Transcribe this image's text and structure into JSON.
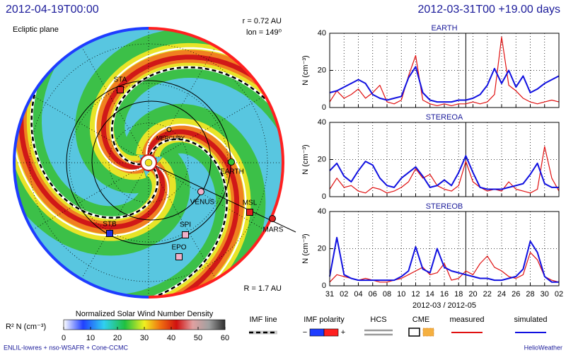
{
  "polar_panel": {
    "title": "2012-04-19T00:00",
    "plane_label": "Ecliptic plane",
    "r_label": "r = 0.72 AU",
    "lon_label": "lon = 149⁰",
    "R_label": "R = 1.7 AU",
    "bodies": [
      {
        "label": "STA"
      },
      {
        "label": "MERCURY"
      },
      {
        "label": "EARTH"
      },
      {
        "label": "VENUS"
      },
      {
        "label": "MSL"
      },
      {
        "label": "MARS"
      },
      {
        "label": "SPI"
      },
      {
        "label": "STB"
      },
      {
        "label": "EPO"
      }
    ]
  },
  "timeseries_title": "2012-03-31T00 +19.00 days",
  "chart_data": [
    {
      "type": "line",
      "title": "EARTH",
      "y_label": "N (cm⁻³)",
      "marker_x": 19,
      "x": [
        0,
        1,
        2,
        3,
        4,
        5,
        6,
        7,
        8,
        9,
        10,
        11,
        12,
        13,
        14,
        15,
        16,
        17,
        18,
        19,
        20,
        21,
        22,
        23,
        24,
        25,
        26,
        27,
        28,
        29,
        30,
        31,
        32
      ],
      "xlim": [
        0,
        32
      ],
      "ylim": [
        0,
        40
      ],
      "yticks": [
        0,
        20,
        40
      ],
      "series": [
        {
          "name": "measured",
          "color": "#e01010",
          "values": [
            3,
            9,
            5,
            7,
            10,
            5,
            8,
            12,
            3,
            2,
            4,
            17,
            28,
            4,
            2,
            1,
            2,
            1,
            2,
            2,
            3,
            2,
            3,
            7,
            38,
            12,
            9,
            5,
            3,
            2,
            3,
            4,
            3
          ]
        },
        {
          "name": "simulated",
          "color": "#1010e0",
          "values": [
            8,
            9,
            11,
            13,
            15,
            13,
            7,
            5,
            4,
            5,
            6,
            16,
            22,
            8,
            4,
            3,
            3,
            3,
            4,
            4,
            5,
            7,
            12,
            21,
            13,
            20,
            11,
            17,
            8,
            10,
            13,
            15,
            17
          ]
        }
      ]
    },
    {
      "type": "line",
      "title": "STEREOA",
      "y_label": "N (cm⁻³)",
      "marker_x": 19,
      "x": [
        0,
        1,
        2,
        3,
        4,
        5,
        6,
        7,
        8,
        9,
        10,
        11,
        12,
        13,
        14,
        15,
        16,
        17,
        18,
        19,
        20,
        21,
        22,
        23,
        24,
        25,
        26,
        27,
        28,
        29,
        30,
        31,
        32
      ],
      "xlim": [
        0,
        32
      ],
      "ylim": [
        0,
        40
      ],
      "yticks": [
        0,
        20,
        40
      ],
      "series": [
        {
          "color": "#e01010",
          "values": [
            4,
            10,
            5,
            6,
            3,
            2,
            5,
            4,
            2,
            3,
            5,
            8,
            15,
            10,
            12,
            6,
            4,
            3,
            6,
            19,
            8,
            5,
            3,
            4,
            3,
            8,
            4,
            3,
            2,
            4,
            27,
            10,
            3
          ]
        },
        {
          "color": "#1010e0",
          "values": [
            14,
            18,
            11,
            8,
            14,
            19,
            17,
            10,
            6,
            5,
            10,
            13,
            16,
            11,
            5,
            6,
            9,
            6,
            13,
            22,
            13,
            5,
            4,
            4,
            4,
            5,
            6,
            7,
            12,
            18,
            7,
            5,
            5
          ]
        }
      ]
    },
    {
      "type": "line",
      "title": "STEREOB",
      "y_label": "N (cm⁻³)",
      "marker_x": 19,
      "x_label": "2012-03 / 2012-05",
      "x": [
        0,
        1,
        2,
        3,
        4,
        5,
        6,
        7,
        8,
        9,
        10,
        11,
        12,
        13,
        14,
        15,
        16,
        17,
        18,
        19,
        20,
        21,
        22,
        23,
        24,
        25,
        26,
        27,
        28,
        29,
        30,
        31,
        32
      ],
      "xlim": [
        0,
        32
      ],
      "ylim": [
        0,
        40
      ],
      "yticks": [
        0,
        20,
        40
      ],
      "xticks": [
        {
          "value": 0,
          "label": "31"
        },
        {
          "value": 2,
          "label": "02"
        },
        {
          "value": 4,
          "label": "04"
        },
        {
          "value": 6,
          "label": "06"
        },
        {
          "value": 8,
          "label": "08"
        },
        10,
        12,
        14,
        16,
        18,
        20,
        22,
        24,
        26,
        28,
        30,
        {
          "value": 32,
          "label": "02"
        }
      ],
      "series": [
        {
          "color": "#e01010",
          "values": [
            2,
            6,
            5,
            4,
            3,
            4,
            3,
            2,
            2,
            3,
            4,
            6,
            8,
            10,
            6,
            7,
            12,
            3,
            4,
            8,
            6,
            12,
            16,
            10,
            8,
            5,
            4,
            6,
            18,
            14,
            5,
            3,
            2
          ]
        },
        {
          "color": "#1010e0",
          "values": [
            5,
            26,
            6,
            4,
            3,
            3,
            3,
            3,
            3,
            3,
            5,
            8,
            21,
            9,
            7,
            20,
            10,
            8,
            7,
            6,
            5,
            4,
            4,
            3,
            3,
            4,
            5,
            9,
            24,
            18,
            5,
            2,
            2
          ]
        }
      ]
    }
  ],
  "colorbar": {
    "label": "R² N (cm⁻³)",
    "title": "Normalized Solar Wind Number Density",
    "lim": [
      0,
      60
    ],
    "ticks": [
      0,
      10,
      20,
      30,
      40,
      50,
      60
    ]
  },
  "legend": {
    "imf_line": "IMF line",
    "imf_polarity": "IMF polarity",
    "minus": "−",
    "plus": "+",
    "hcs": "HCS",
    "cme": "CME"
  },
  "footer": {
    "left": "ENLIL-lowres + nso-WSAFR + Cone-CCMC",
    "right": "HelioWeather"
  }
}
